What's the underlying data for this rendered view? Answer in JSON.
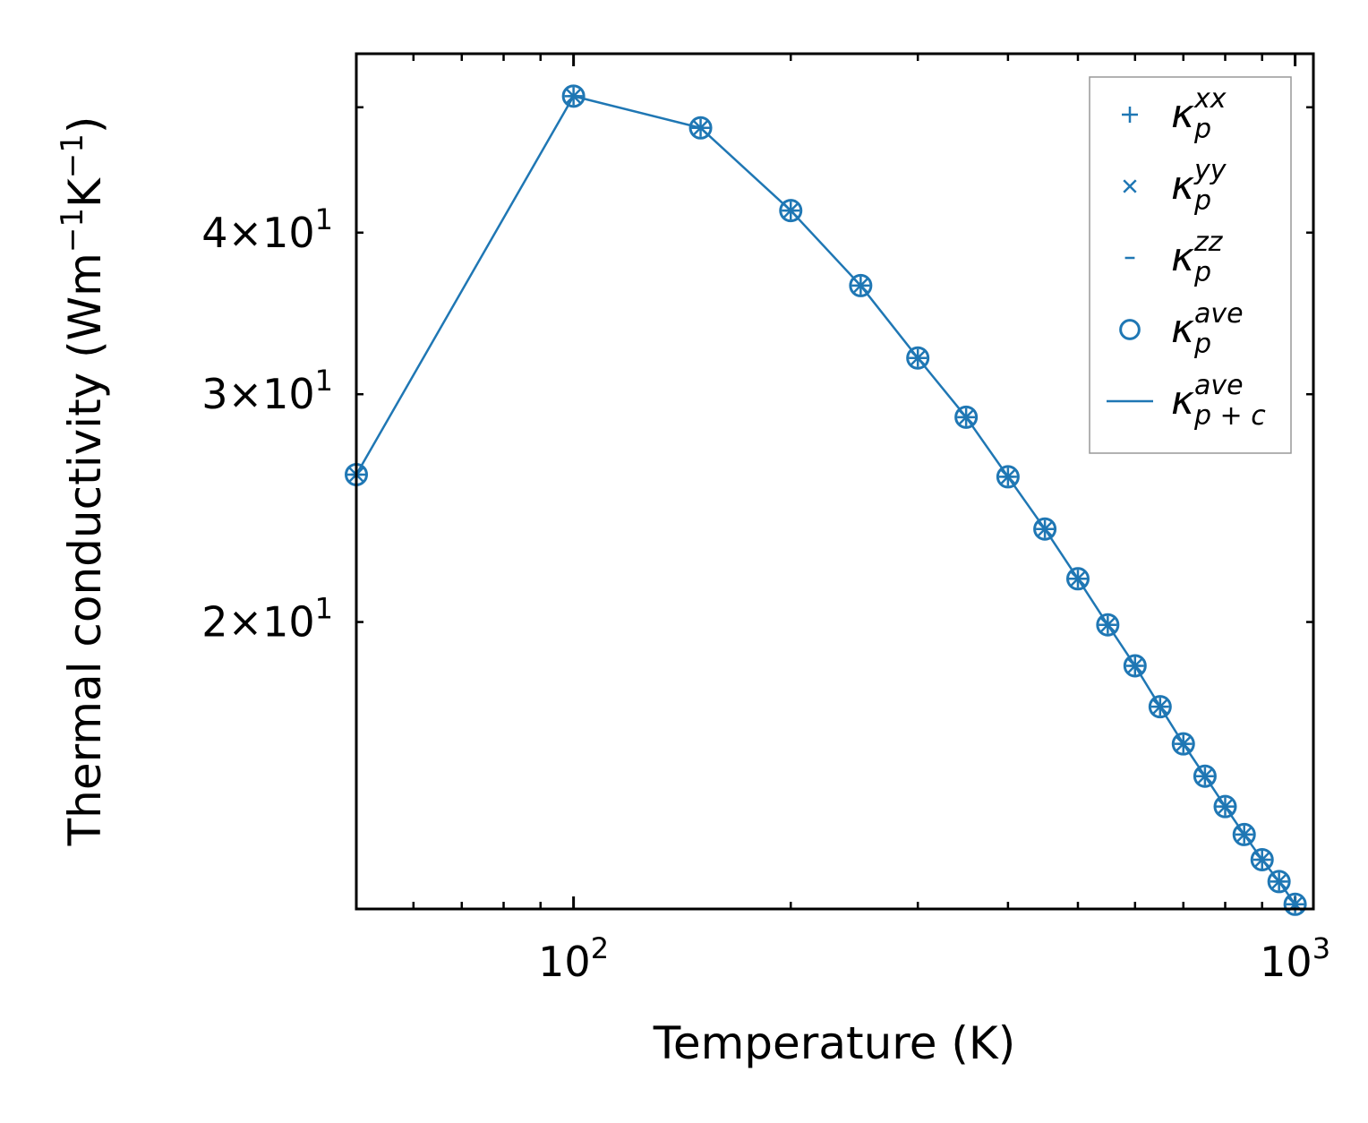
{
  "chart_data": {
    "type": "line",
    "xscale": "log",
    "yscale": "log",
    "xlim": [
      50,
      1060
    ],
    "ylim": [
      12.0,
      55.0
    ],
    "xlabel": "Temperature (K)",
    "ylabel": {
      "main": "Thermal conductivity (Wm",
      "exp1": "−1",
      "mid": "K",
      "exp2": "−1",
      "end": ")"
    },
    "xticks": [
      {
        "value": 100,
        "base": "10",
        "exp": "2"
      },
      {
        "value": 1000,
        "base": "10",
        "exp": "3"
      }
    ],
    "yticks": [
      {
        "value": 20,
        "mantissa": "2",
        "base": "10",
        "exp": "1"
      },
      {
        "value": 30,
        "mantissa": "3",
        "base": "10",
        "exp": "1"
      },
      {
        "value": 40,
        "mantissa": "4",
        "base": "10",
        "exp": "1"
      }
    ],
    "color": "#1f77b4",
    "x": [
      50,
      100,
      150,
      200,
      250,
      300,
      350,
      400,
      450,
      500,
      550,
      600,
      650,
      700,
      750,
      800,
      850,
      900,
      950,
      1000
    ],
    "series": [
      {
        "id": "kxx",
        "marker": "plus",
        "values": [
          26.0,
          51.0,
          48.2,
          41.6,
          36.4,
          32.0,
          28.8,
          25.9,
          23.6,
          21.6,
          19.9,
          18.5,
          17.2,
          16.1,
          15.2,
          14.4,
          13.7,
          13.1,
          12.6,
          12.1
        ]
      },
      {
        "id": "kyy",
        "marker": "cross",
        "values": [
          26.0,
          51.0,
          48.2,
          41.6,
          36.4,
          32.0,
          28.8,
          25.9,
          23.6,
          21.6,
          19.9,
          18.5,
          17.2,
          16.1,
          15.2,
          14.4,
          13.7,
          13.1,
          12.6,
          12.1
        ]
      },
      {
        "id": "kzz",
        "marker": "dash",
        "values": [
          26.0,
          51.0,
          48.2,
          41.6,
          36.4,
          32.0,
          28.8,
          25.9,
          23.6,
          21.6,
          19.9,
          18.5,
          17.2,
          16.1,
          15.2,
          14.4,
          13.7,
          13.1,
          12.6,
          12.1
        ]
      },
      {
        "id": "kave",
        "marker": "circle",
        "values": [
          26.0,
          51.0,
          48.2,
          41.6,
          36.4,
          32.0,
          28.8,
          25.9,
          23.6,
          21.6,
          19.9,
          18.5,
          17.2,
          16.1,
          15.2,
          14.4,
          13.7,
          13.1,
          12.6,
          12.1
        ]
      },
      {
        "id": "kpc",
        "marker": "line",
        "values": [
          26.0,
          51.0,
          48.2,
          41.6,
          36.4,
          32.0,
          28.8,
          25.9,
          23.6,
          21.6,
          19.9,
          18.5,
          17.2,
          16.1,
          15.2,
          14.4,
          13.7,
          13.1,
          12.6,
          12.1
        ]
      }
    ],
    "legend": {
      "placement": "top-right",
      "entries": [
        {
          "marker": "plus",
          "sym": "κ",
          "sub": "p",
          "sup": "xx"
        },
        {
          "marker": "cross",
          "sym": "κ",
          "sub": "p",
          "sup": "yy"
        },
        {
          "marker": "dash",
          "sym": "κ",
          "sub": "p",
          "sup": "zz"
        },
        {
          "marker": "circle",
          "sym": "κ",
          "sub": "p",
          "sup": "ave"
        },
        {
          "marker": "line",
          "sym": "κ",
          "sub": "p + c",
          "sup": "ave"
        }
      ]
    },
    "grid": false
  }
}
